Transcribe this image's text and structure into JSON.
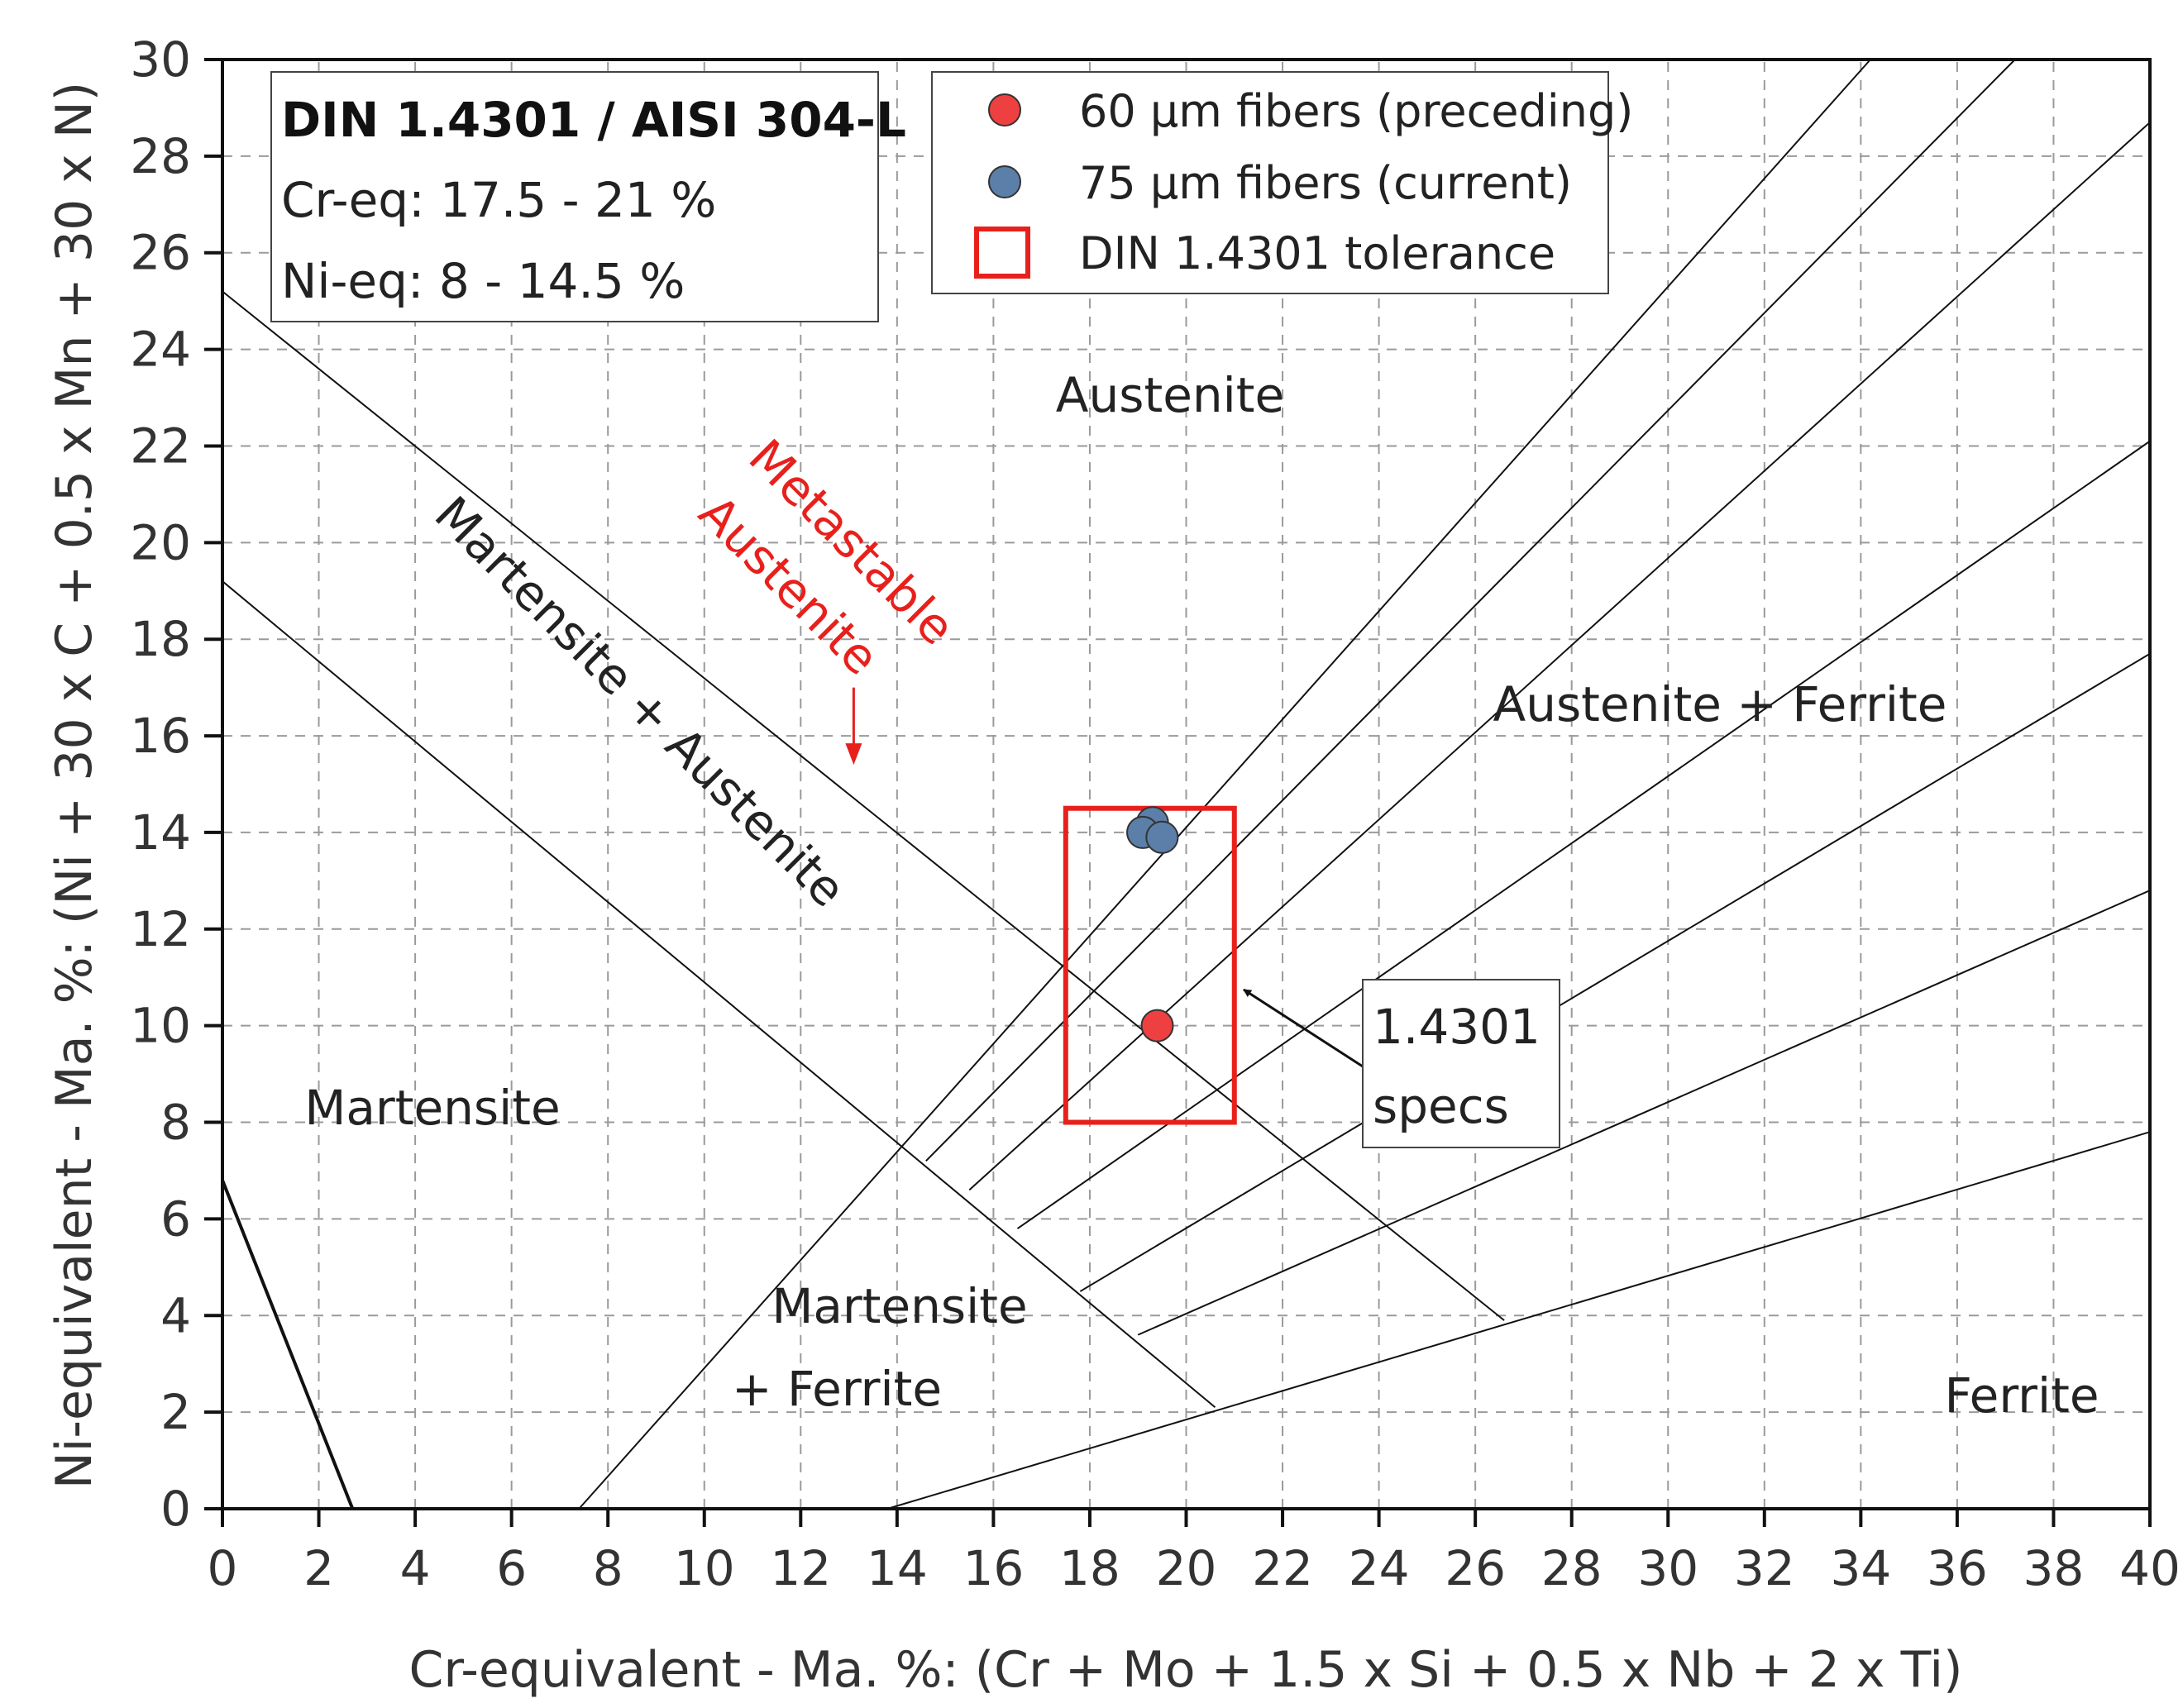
{
  "chart_data": {
    "type": "scatter",
    "title": "",
    "xlabel": "Cr-equivalent - Ma. %: (Cr + Mo + 1.5 x Si + 0.5 x Nb + 2 x Ti)",
    "ylabel": "Ni-equivalent - Ma. %: (Ni + 30 x C + 0.5 x Mn + 30 x N)",
    "xlim": [
      0,
      40
    ],
    "ylim": [
      0,
      30
    ],
    "x_ticks": [
      "0",
      "2",
      "4",
      "6",
      "8",
      "10",
      "12",
      "14",
      "16",
      "18",
      "20",
      "22",
      "24",
      "26",
      "28",
      "30",
      "32",
      "34",
      "36",
      "38",
      "40"
    ],
    "y_ticks": [
      "0",
      "2",
      "4",
      "6",
      "8",
      "10",
      "12",
      "14",
      "16",
      "18",
      "20",
      "22",
      "24",
      "26",
      "28",
      "30"
    ],
    "grid": true,
    "series": [
      {
        "name": "60 µm fibers (preceding)",
        "color": "#ee4040",
        "points": [
          [
            19.4,
            10.0
          ]
        ]
      },
      {
        "name": "75 µm fibers (current)",
        "color": "#5b7fa8",
        "points": [
          [
            19.3,
            14.2
          ],
          [
            19.1,
            14.0
          ],
          [
            19.5,
            13.9
          ]
        ]
      }
    ],
    "tolerance_box": {
      "name": "DIN 1.4301 tolerance",
      "color": "#e8201c",
      "cr_range": [
        17.5,
        21.0
      ],
      "ni_range": [
        8.0,
        14.5
      ]
    },
    "boundary_lines": [
      [
        [
          0.0,
          25.2
        ],
        [
          26.6,
          3.9
        ]
      ],
      [
        [
          0.0,
          19.2
        ],
        [
          20.6,
          2.1
        ]
      ],
      [
        [
          7.4,
          0.0
        ],
        [
          34.2,
          30.0
        ]
      ],
      [
        [
          14.6,
          7.2
        ],
        [
          37.2,
          30.0
        ]
      ],
      [
        [
          15.5,
          6.6
        ],
        [
          40.0,
          28.7
        ]
      ],
      [
        [
          16.5,
          5.8
        ],
        [
          40.0,
          22.1
        ]
      ],
      [
        [
          17.8,
          4.5
        ],
        [
          40.0,
          17.7
        ]
      ],
      [
        [
          19.0,
          3.6
        ],
        [
          40.0,
          12.8
        ]
      ],
      [
        [
          13.8,
          0.0
        ],
        [
          40.0,
          7.8
        ]
      ],
      [
        [
          0.0,
          6.8
        ],
        [
          2.7,
          0.0
        ]
      ]
    ],
    "regions": {
      "austenite": "Austenite",
      "austenite_ferrite": "Austenite + Ferrite",
      "martensite": "Martensite",
      "martensite_austenite": "Martensite + Austenite",
      "martensite_ferrite_1": "Martensite",
      "martensite_ferrite_2": "+ Ferrite",
      "ferrite": "Ferrite",
      "metastable_1": "Metastable",
      "metastable_2": "Austenite"
    },
    "info_box": {
      "title": "DIN 1.4301 / AISI 304-L",
      "line1": "Cr-eq: 17.5 - 21 %",
      "line2": "Ni-eq: 8 - 14.5 %"
    },
    "legend": {
      "item1": "60 µm fibers (preceding)",
      "item2": "75 µm fibers (current)",
      "item3": "DIN 1.4301 tolerance"
    },
    "annotation": {
      "line1": "1.4301",
      "line2": "specs"
    }
  }
}
